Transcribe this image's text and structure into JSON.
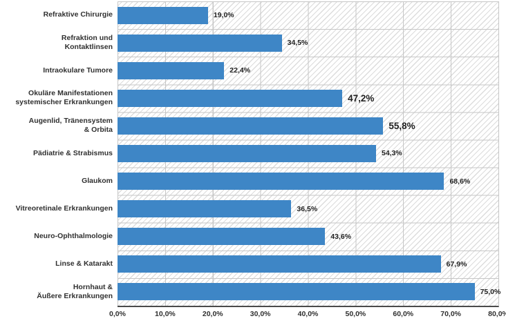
{
  "chart_data": {
    "type": "bar",
    "orientation": "horizontal",
    "title": "",
    "xlabel": "",
    "ylabel": "",
    "xlim": [
      0,
      80
    ],
    "grid": true,
    "legend": false,
    "x_ticks": [
      "0,0%",
      "10,0%",
      "20,0%",
      "30,0%",
      "40,0%",
      "50,0%",
      "60,0%",
      "70,0%",
      "80,0%"
    ],
    "categories": [
      "Refraktive Chirurgie",
      "Refraktion und\nKontaktlinsen",
      "Intraokulare Tumore",
      "Okuläre Manifestationen\nsystemischer Erkrankungen",
      "Augenlid, Tränensystem\n& Orbita",
      "Pädiatrie & Strabismus",
      "Glaukom",
      "Vitreoretinale Erkrankungen",
      "Neuro-Ophthalmologie",
      "Linse & Katarakt",
      "Hornhaut &\nÄußere Erkrankungen"
    ],
    "values": [
      19.0,
      34.5,
      22.4,
      47.2,
      55.8,
      54.3,
      68.6,
      36.5,
      43.6,
      67.9,
      75.0
    ],
    "value_labels": [
      "19,0%",
      "34,5%",
      "22,4%",
      "47,2%",
      "55,8%",
      "54,3%",
      "68,6%",
      "36,5%",
      "43,6%",
      "67,9%",
      "75,0%"
    ],
    "emphasized_value_indices": [
      3,
      4
    ]
  },
  "style": {
    "bar_color": "#3E86C6",
    "grid_color": "#c6c6c6",
    "hatch_color": "#dcdcdc",
    "axis_color": "#4a4a4a",
    "label_color": "#303030",
    "value_color": "#1f1f1f",
    "background_color": "#ffffff"
  }
}
